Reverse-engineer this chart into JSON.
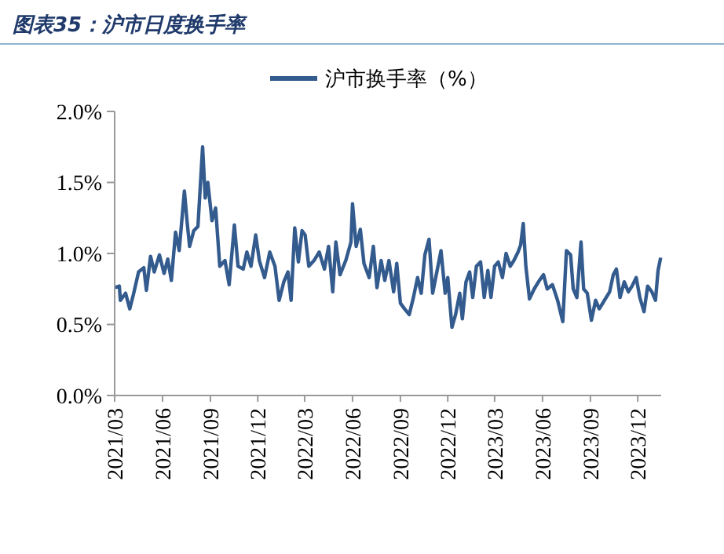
{
  "chart_data": {
    "type": "line",
    "title": "图表35：沪市日度换手率",
    "x": [
      "2021-03-02",
      "2021-03-10",
      "2021-03-12",
      "2021-03-22",
      "2021-03-30",
      "2021-04-06",
      "2021-04-16",
      "2021-04-26",
      "2021-05-01",
      "2021-05-09",
      "2021-05-16",
      "2021-05-26",
      "2021-06-04",
      "2021-06-11",
      "2021-06-18",
      "2021-06-26",
      "2021-07-03",
      "2021-07-13",
      "2021-07-18",
      "2021-07-23",
      "2021-07-31",
      "2021-08-08",
      "2021-08-17",
      "2021-08-22",
      "2021-08-27",
      "2021-09-04",
      "2021-09-11",
      "2021-09-19",
      "2021-09-29",
      "2021-10-07",
      "2021-10-17",
      "2021-10-24",
      "2021-11-03",
      "2021-11-10",
      "2021-11-18",
      "2021-11-27",
      "2021-12-04",
      "2021-12-14",
      "2021-12-24",
      "2022-01-03",
      "2022-01-11",
      "2022-01-20",
      "2022-01-28",
      "2022-02-03",
      "2022-02-10",
      "2022-02-17",
      "2022-02-24",
      "2022-03-02",
      "2022-03-09",
      "2022-03-19",
      "2022-03-29",
      "2022-04-08",
      "2022-04-16",
      "2022-04-24",
      "2022-04-30",
      "2022-05-08",
      "2022-05-19",
      "2022-05-29",
      "2022-06-01",
      "2022-06-08",
      "2022-06-16",
      "2022-06-23",
      "2022-07-03",
      "2022-07-11",
      "2022-07-18",
      "2022-07-26",
      "2022-08-02",
      "2022-08-10",
      "2022-08-19",
      "2022-08-25",
      "2022-09-01",
      "2022-09-09",
      "2022-09-18",
      "2022-09-26",
      "2022-10-04",
      "2022-10-11",
      "2022-10-18",
      "2022-10-26",
      "2022-11-02",
      "2022-11-10",
      "2022-11-18",
      "2022-11-26",
      "2022-12-01",
      "2022-12-09",
      "2022-12-16",
      "2022-12-24",
      "2022-12-29",
      "2023-01-05",
      "2023-01-12",
      "2023-01-18",
      "2023-01-25",
      "2023-02-02",
      "2023-02-09",
      "2023-02-16",
      "2023-02-22",
      "2023-03-01",
      "2023-03-08",
      "2023-03-16",
      "2023-03-23",
      "2023-03-31",
      "2023-04-07",
      "2023-04-15",
      "2023-04-20",
      "2023-04-25",
      "2023-04-30",
      "2023-05-07",
      "2023-05-16",
      "2023-05-26",
      "2023-06-03",
      "2023-06-10",
      "2023-06-20",
      "2023-06-30",
      "2023-07-10",
      "2023-07-17",
      "2023-07-25",
      "2023-07-30",
      "2023-08-06",
      "2023-08-14",
      "2023-08-19",
      "2023-08-26",
      "2023-09-03",
      "2023-09-11",
      "2023-09-18",
      "2023-09-28",
      "2023-10-08",
      "2023-10-15",
      "2023-10-21",
      "2023-10-28",
      "2023-11-05",
      "2023-11-13",
      "2023-11-20",
      "2023-11-28",
      "2023-12-05",
      "2023-12-13",
      "2023-12-20",
      "2023-12-28",
      "2024-01-04",
      "2024-01-09",
      "2024-01-14"
    ],
    "series": [
      {
        "name": "沪市换手率（%）",
        "color": "#335b8e",
        "values": [
          0.76,
          0.77,
          0.67,
          0.72,
          0.61,
          0.71,
          0.87,
          0.9,
          0.74,
          0.98,
          0.87,
          0.99,
          0.86,
          0.96,
          0.81,
          1.15,
          1.02,
          1.44,
          1.23,
          1.05,
          1.16,
          1.19,
          1.75,
          1.39,
          1.5,
          1.23,
          1.32,
          0.91,
          0.95,
          0.78,
          1.2,
          0.91,
          0.89,
          1.01,
          0.91,
          1.13,
          0.95,
          0.83,
          1.01,
          0.91,
          0.67,
          0.8,
          0.87,
          0.67,
          1.18,
          0.94,
          1.16,
          1.13,
          0.91,
          0.95,
          1.01,
          0.89,
          1.05,
          0.73,
          1.08,
          0.85,
          0.95,
          1.08,
          1.35,
          1.05,
          1.17,
          0.93,
          0.83,
          1.05,
          0.76,
          0.95,
          0.81,
          0.95,
          0.73,
          0.93,
          0.65,
          0.61,
          0.57,
          0.69,
          0.83,
          0.72,
          0.99,
          1.1,
          0.72,
          0.87,
          1.02,
          0.72,
          0.83,
          0.48,
          0.57,
          0.72,
          0.54,
          0.8,
          0.87,
          0.69,
          0.91,
          0.94,
          0.69,
          0.88,
          0.69,
          0.91,
          0.94,
          0.83,
          1.0,
          0.91,
          0.95,
          1.01,
          1.06,
          1.21,
          0.91,
          0.68,
          0.75,
          0.81,
          0.85,
          0.75,
          0.78,
          0.67,
          0.52,
          1.02,
          0.99,
          0.75,
          0.69,
          1.08,
          0.75,
          0.72,
          0.53,
          0.67,
          0.61,
          0.67,
          0.73,
          0.85,
          0.89,
          0.69,
          0.8,
          0.73,
          0.77,
          0.83,
          0.69,
          0.59,
          0.77,
          0.73,
          0.67,
          0.88,
          0.97
        ]
      }
    ],
    "xlim": [
      "2021-03-01",
      "2024-01-15"
    ],
    "xticks": [
      {
        "value": "2021-03-01",
        "label": "2021/03"
      },
      {
        "value": "2021-06-01",
        "label": "2021/06"
      },
      {
        "value": "2021-09-01",
        "label": "2021/09"
      },
      {
        "value": "2021-12-01",
        "label": "2021/12"
      },
      {
        "value": "2022-03-01",
        "label": "2022/03"
      },
      {
        "value": "2022-06-01",
        "label": "2022/06"
      },
      {
        "value": "2022-09-01",
        "label": "2022/09"
      },
      {
        "value": "2022-12-01",
        "label": "2022/12"
      },
      {
        "value": "2023-03-01",
        "label": "2023/03"
      },
      {
        "value": "2023-06-01",
        "label": "2023/06"
      },
      {
        "value": "2023-09-01",
        "label": "2023/09"
      },
      {
        "value": "2023-12-01",
        "label": "2023/12"
      }
    ],
    "ylim": [
      0,
      2
    ],
    "yticks": [
      {
        "value": 0,
        "label": "0.0%"
      },
      {
        "value": 0.5,
        "label": "0.5%"
      },
      {
        "value": 1,
        "label": "1.0%"
      },
      {
        "value": 1.5,
        "label": "1.5%"
      },
      {
        "value": 2,
        "label": "2.0%"
      }
    ],
    "grid": false,
    "legend": "top",
    "marker": "none",
    "line_style": "solid"
  }
}
